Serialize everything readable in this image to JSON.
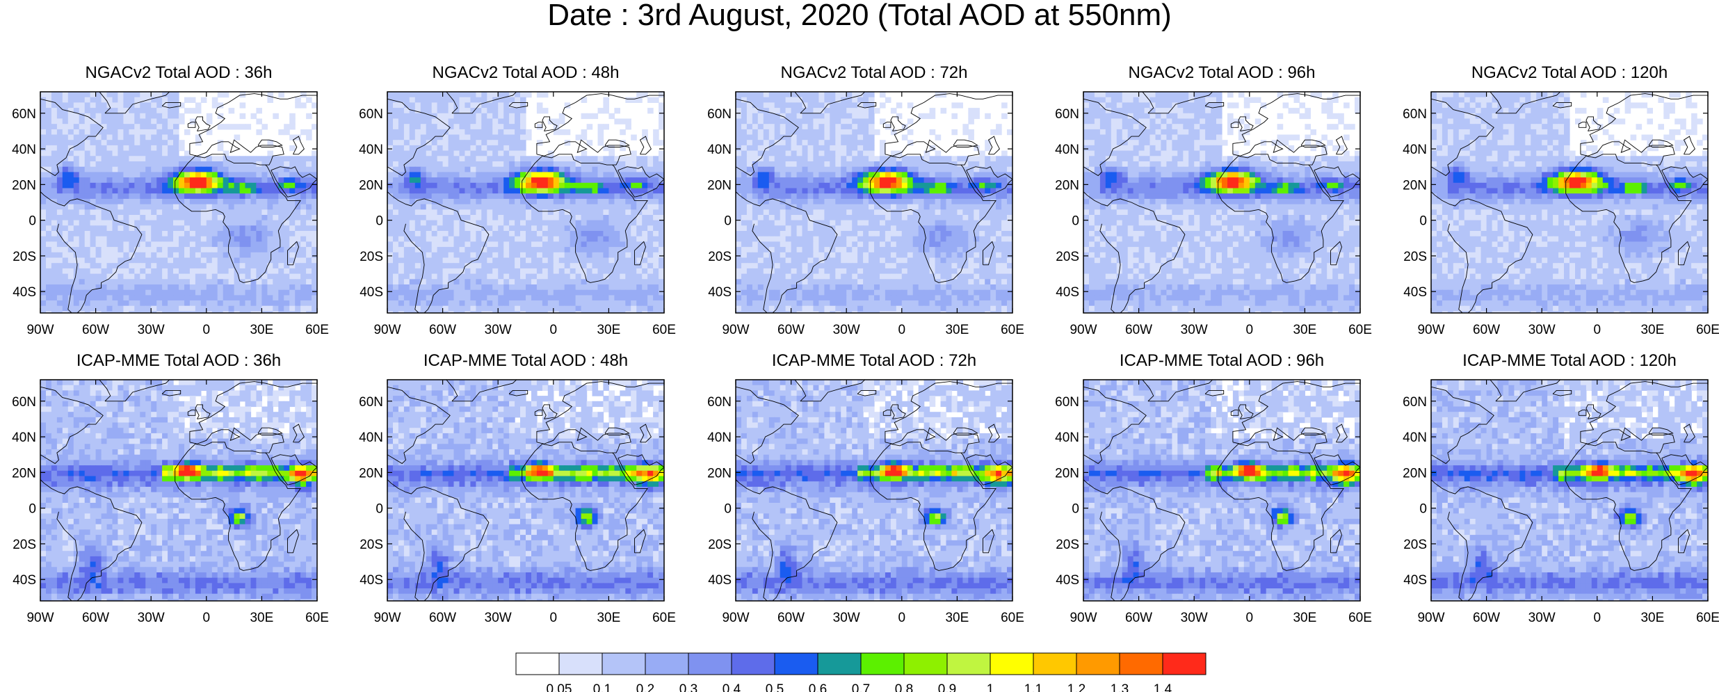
{
  "title": "Date : 3rd August, 2020 (Total AOD at 550nm)",
  "rows": [
    {
      "model": "NGACv2",
      "panels": [
        {
          "title": "NGACv2 Total AOD : 36h"
        },
        {
          "title": "NGACv2 Total AOD : 48h"
        },
        {
          "title": "NGACv2 Total AOD : 72h"
        },
        {
          "title": "NGACv2 Total AOD : 96h"
        },
        {
          "title": "NGACv2 Total AOD : 120h"
        }
      ]
    },
    {
      "model": "ICAP-MME",
      "panels": [
        {
          "title": "ICAP-MME Total AOD : 36h"
        },
        {
          "title": "ICAP-MME Total AOD : 48h"
        },
        {
          "title": "ICAP-MME Total AOD : 72h"
        },
        {
          "title": "ICAP-MME Total AOD : 96h"
        },
        {
          "title": "ICAP-MME Total AOD : 120h"
        }
      ]
    }
  ],
  "map": {
    "lon_range": [
      -90,
      60
    ],
    "lat_range": [
      -52,
      72
    ],
    "lon_ticks": [
      {
        "value": -90,
        "label": "90W"
      },
      {
        "value": -60,
        "label": "60W"
      },
      {
        "value": -30,
        "label": "30W"
      },
      {
        "value": 0,
        "label": "0"
      },
      {
        "value": 30,
        "label": "30E"
      },
      {
        "value": 60,
        "label": "60E"
      }
    ],
    "lat_ticks": [
      {
        "value": 60,
        "label": "60N"
      },
      {
        "value": 40,
        "label": "40N"
      },
      {
        "value": 20,
        "label": "20N"
      },
      {
        "value": 0,
        "label": "0"
      },
      {
        "value": -20,
        "label": "20S"
      },
      {
        "value": -40,
        "label": "40S"
      }
    ]
  },
  "colorbar": {
    "labels": [
      "0.05",
      "0.1",
      "0.2",
      "0.3",
      "0.4",
      "0.5",
      "0.6",
      "0.7",
      "0.8",
      "0.9",
      "1",
      "1.1",
      "1.2",
      "1.3",
      "1.4"
    ],
    "colors": [
      "#ffffff",
      "#d8e0fb",
      "#b4c4f8",
      "#98acf5",
      "#7f92f0",
      "#5e6cea",
      "#1a5cf0",
      "#169999",
      "#5cf000",
      "#8ef000",
      "#c0f540",
      "#ffff00",
      "#ffc800",
      "#ff9a00",
      "#ff6a00",
      "#ff2a1a"
    ]
  }
}
